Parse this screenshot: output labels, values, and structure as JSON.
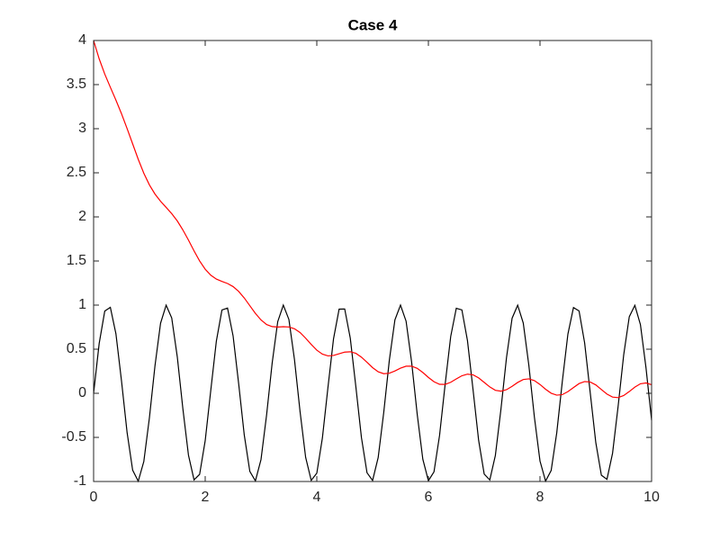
{
  "chart_data": {
    "type": "line",
    "title": "Case 4",
    "x": [
      0,
      0.1,
      0.2,
      0.3,
      0.4,
      0.5,
      0.6,
      0.7,
      0.8,
      0.9,
      1,
      1.1,
      1.2,
      1.3,
      1.4,
      1.5,
      1.6,
      1.7,
      1.8,
      1.9,
      2,
      2.1,
      2.2,
      2.3,
      2.4,
      2.5,
      2.6,
      2.7,
      2.8,
      2.9,
      3,
      3.1,
      3.2,
      3.3,
      3.4,
      3.5,
      3.6,
      3.7,
      3.8,
      3.9,
      4,
      4.1,
      4.2,
      4.3,
      4.4,
      4.5,
      4.6,
      4.7,
      4.8,
      4.9,
      5,
      5.1,
      5.2,
      5.3,
      5.4,
      5.5,
      5.6,
      5.7,
      5.8,
      5.9,
      6,
      6.1,
      6.2,
      6.3,
      6.4,
      6.5,
      6.6,
      6.7,
      6.8,
      6.9,
      7,
      7.1,
      7.2,
      7.3,
      7.4,
      7.5,
      7.6,
      7.7,
      7.8,
      7.9,
      8,
      8.1,
      8.2,
      8.3,
      8.4,
      8.5,
      8.6,
      8.7,
      8.8,
      8.9,
      9,
      9.1,
      9.2,
      9.3,
      9.4,
      9.5,
      9.6,
      9.7,
      9.8,
      9.9,
      10
    ],
    "series": [
      {
        "color": "#000000",
        "values": [
          0,
          0.565,
          0.932,
          0.974,
          0.675,
          0.141,
          -0.443,
          -0.872,
          -0.996,
          -0.773,
          -0.279,
          0.312,
          0.794,
          0.999,
          0.854,
          0.412,
          -0.175,
          -0.701,
          -0.981,
          -0.919,
          -0.537,
          0.034,
          0.592,
          0.944,
          0.966,
          0.65,
          0.108,
          -0.472,
          -0.886,
          -0.993,
          -0.751,
          -0.247,
          0.343,
          0.813,
          1,
          0.837,
          0.382,
          -0.207,
          -0.726,
          -0.987,
          -0.906,
          -0.508,
          0.067,
          0.619,
          0.954,
          0.956,
          0.625,
          0.075,
          -0.502,
          -0.901,
          -0.988,
          -0.729,
          -0.215,
          0.375,
          0.833,
          1,
          0.818,
          0.35,
          -0.24,
          -0.747,
          -0.991,
          -0.891,
          -0.478,
          0.101,
          0.645,
          0.964,
          0.946,
          0.598,
          0.041,
          -0.532,
          -0.916,
          -0.982,
          -0.705,
          -0.181,
          0.406,
          0.851,
          0.999,
          0.797,
          0.318,
          -0.272,
          -0.768,
          -0.995,
          -0.875,
          -0.449,
          0.134,
          0.671,
          0.972,
          0.934,
          0.571,
          0.007,
          -0.559,
          -0.929,
          -0.975,
          -0.681,
          -0.147,
          0.436,
          0.868,
          0.997,
          0.778,
          0.287,
          -0.305
        ]
      },
      {
        "color": "#ff0000",
        "values": [
          4,
          3.792,
          3.619,
          3.47,
          3.324,
          3.17,
          3.002,
          2.828,
          2.653,
          2.495,
          2.363,
          2.259,
          2.177,
          2.108,
          2.037,
          1.954,
          1.852,
          1.737,
          1.615,
          1.501,
          1.407,
          1.339,
          1.295,
          1.269,
          1.245,
          1.21,
          1.155,
          1.081,
          0.993,
          0.906,
          0.832,
          0.78,
          0.756,
          0.751,
          0.755,
          0.752,
          0.732,
          0.689,
          0.625,
          0.554,
          0.489,
          0.444,
          0.424,
          0.429,
          0.448,
          0.467,
          0.471,
          0.453,
          0.41,
          0.351,
          0.291,
          0.244,
          0.222,
          0.228,
          0.253,
          0.285,
          0.307,
          0.308,
          0.283,
          0.236,
          0.18,
          0.131,
          0.102,
          0.101,
          0.125,
          0.163,
          0.199,
          0.217,
          0.21,
          0.175,
          0.124,
          0.072,
          0.034,
          0.024,
          0.041,
          0.079,
          0.123,
          0.156,
          0.164,
          0.144,
          0.1,
          0.046,
          0.001,
          -0.021,
          -0.015,
          0.019,
          0.065,
          0.11,
          0.133,
          0.128,
          0.095,
          0.043,
          -0.009,
          -0.043,
          -0.049,
          -0.025,
          0.02,
          0.07,
          0.108,
          0.117,
          0.097
        ]
      }
    ],
    "xlim": [
      0,
      10
    ],
    "xticks": [
      0,
      2,
      4,
      6,
      8,
      10
    ],
    "ylim": [
      -1,
      4
    ],
    "yticks": [
      -1,
      -0.5,
      0,
      0.5,
      1,
      1.5,
      2,
      2.5,
      3,
      3.5,
      4
    ]
  }
}
